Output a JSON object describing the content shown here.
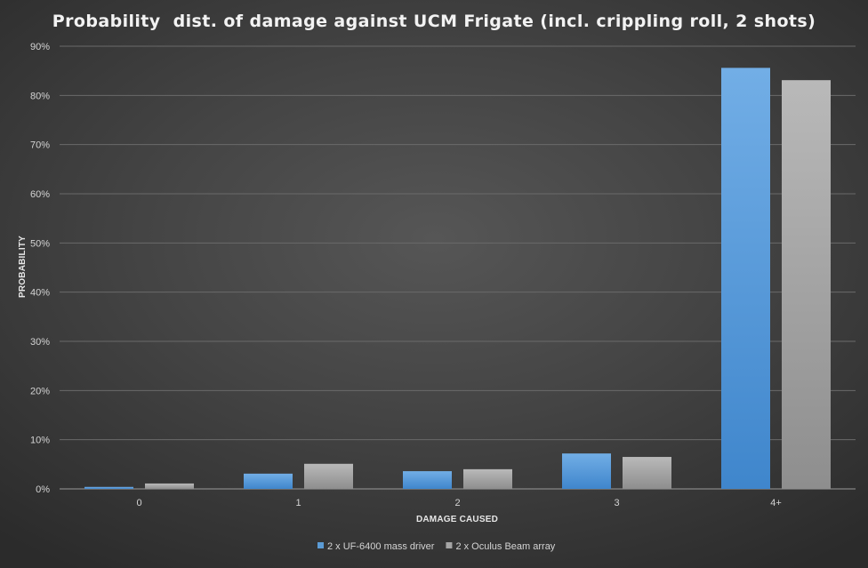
{
  "chart_data": {
    "type": "bar",
    "title": "Probability  dist. of damage against UCM Frigate (incl. crippling roll, 2 shots)",
    "xlabel": "DAMAGE CAUSED",
    "ylabel": "PROBABILITY",
    "categories": [
      "0",
      "1",
      "2",
      "3",
      "4+"
    ],
    "ylim": [
      0,
      0.9
    ],
    "yticks": [
      "0%",
      "10%",
      "20%",
      "30%",
      "40%",
      "50%",
      "60%",
      "70%",
      "80%",
      "90%"
    ],
    "grid": true,
    "legend_position": "bottom",
    "series": [
      {
        "name": "2 x UF-6400 mass driver",
        "values": [
          0.004,
          0.031,
          0.036,
          0.072,
          0.856
        ],
        "color": "#5b9bd5"
      },
      {
        "name": "2 x Oculus Beam array",
        "values": [
          0.011,
          0.051,
          0.04,
          0.065,
          0.831
        ],
        "color": "#a5a5a5"
      }
    ]
  }
}
